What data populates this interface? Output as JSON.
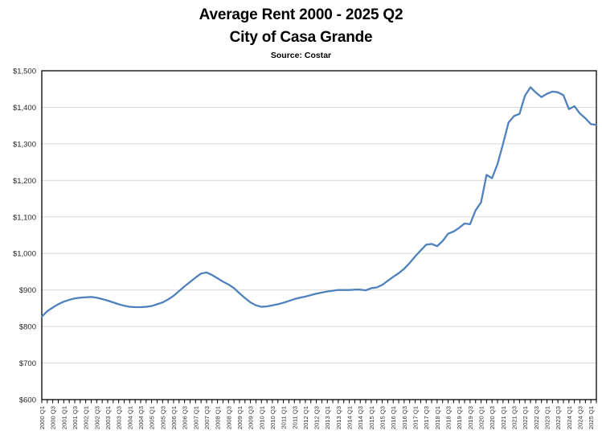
{
  "header": {
    "title": "Average Rent 2000 - 2025 Q2",
    "subtitle": "City of Casa Grande",
    "source": "Source: Costar"
  },
  "chart_data": {
    "type": "line",
    "title": "Average Rent 2000 - 2025 Q2",
    "subtitle": "City of Casa Grande",
    "source": "Source: Costar",
    "series_name": "Average Rent ($)",
    "legend": "none",
    "grid": "horizontal",
    "ylim": [
      600,
      1500
    ],
    "y_ticks": [
      600,
      700,
      800,
      900,
      1000,
      1100,
      1200,
      1300,
      1400,
      1500
    ],
    "y_tick_labels": [
      "$600",
      "$700",
      "$800",
      "$900",
      "$1,000",
      "$1,100",
      "$1,200",
      "$1,300",
      "$1,400",
      "$1,500"
    ],
    "x_label_interval": 2,
    "line_color": "#4f81bd",
    "gridline_color": "#d9d9d9",
    "axis_color": "#000000",
    "tick_label_color": "#333333",
    "x": [
      "2000 Q1",
      "2000 Q2",
      "2000 Q3",
      "2000 Q4",
      "2001 Q1",
      "2001 Q2",
      "2001 Q3",
      "2001 Q4",
      "2002 Q1",
      "2002 Q2",
      "2002 Q3",
      "2002 Q4",
      "2003 Q1",
      "2003 Q2",
      "2003 Q3",
      "2003 Q4",
      "2004 Q1",
      "2004 Q2",
      "2004 Q3",
      "2004 Q4",
      "2005 Q1",
      "2005 Q2",
      "2005 Q3",
      "2005 Q4",
      "2006 Q1",
      "2006 Q2",
      "2006 Q3",
      "2006 Q4",
      "2007 Q1",
      "2007 Q2",
      "2007 Q3",
      "2007 Q4",
      "2008 Q1",
      "2008 Q2",
      "2008 Q3",
      "2008 Q4",
      "2009 Q1",
      "2009 Q2",
      "2009 Q3",
      "2009 Q4",
      "2010 Q1",
      "2010 Q2",
      "2010 Q3",
      "2010 Q4",
      "2011 Q1",
      "2011 Q2",
      "2011 Q3",
      "2011 Q4",
      "2012 Q1",
      "2012 Q2",
      "2012 Q3",
      "2012 Q4",
      "2013 Q1",
      "2013 Q2",
      "2013 Q3",
      "2013 Q4",
      "2014 Q1",
      "2014 Q2",
      "2014 Q3",
      "2014 Q4",
      "2015 Q1",
      "2015 Q2",
      "2015 Q3",
      "2015 Q4",
      "2016 Q1",
      "2016 Q2",
      "2016 Q3",
      "2016 Q4",
      "2017 Q1",
      "2017 Q2",
      "2017 Q3",
      "2017 Q4",
      "2018 Q1",
      "2018 Q2",
      "2018 Q3",
      "2018 Q4",
      "2019 Q1",
      "2019 Q2",
      "2019 Q3",
      "2019 Q4",
      "2020 Q1",
      "2020 Q2",
      "2020 Q3",
      "2020 Q4",
      "2021 Q1",
      "2021 Q2",
      "2021 Q3",
      "2021 Q4",
      "2022 Q1",
      "2022 Q2",
      "2022 Q3",
      "2022 Q4",
      "2023 Q1",
      "2023 Q2",
      "2023 Q3",
      "2023 Q4",
      "2024 Q1",
      "2024 Q2",
      "2024 Q3",
      "2024 Q4",
      "2025 Q1",
      "2025 Q2"
    ],
    "values": [
      827,
      842,
      852,
      861,
      868,
      873,
      877,
      879,
      880,
      881,
      879,
      875,
      871,
      866,
      861,
      857,
      854,
      853,
      853,
      854,
      856,
      861,
      866,
      874,
      884,
      897,
      910,
      922,
      934,
      945,
      948,
      941,
      932,
      923,
      915,
      905,
      891,
      878,
      866,
      858,
      854,
      855,
      858,
      861,
      865,
      870,
      875,
      879,
      882,
      886,
      890,
      893,
      896,
      898,
      900,
      900,
      900,
      901,
      901,
      899,
      905,
      907,
      914,
      925,
      936,
      946,
      958,
      974,
      992,
      1008,
      1024,
      1026,
      1020,
      1034,
      1054,
      1060,
      1070,
      1082,
      1080,
      1118,
      1140,
      1215,
      1206,
      1245,
      1300,
      1358,
      1376,
      1382,
      1432,
      1455,
      1440,
      1428,
      1437,
      1443,
      1441,
      1433,
      1395,
      1403,
      1383,
      1370,
      1354,
      1352
    ]
  }
}
